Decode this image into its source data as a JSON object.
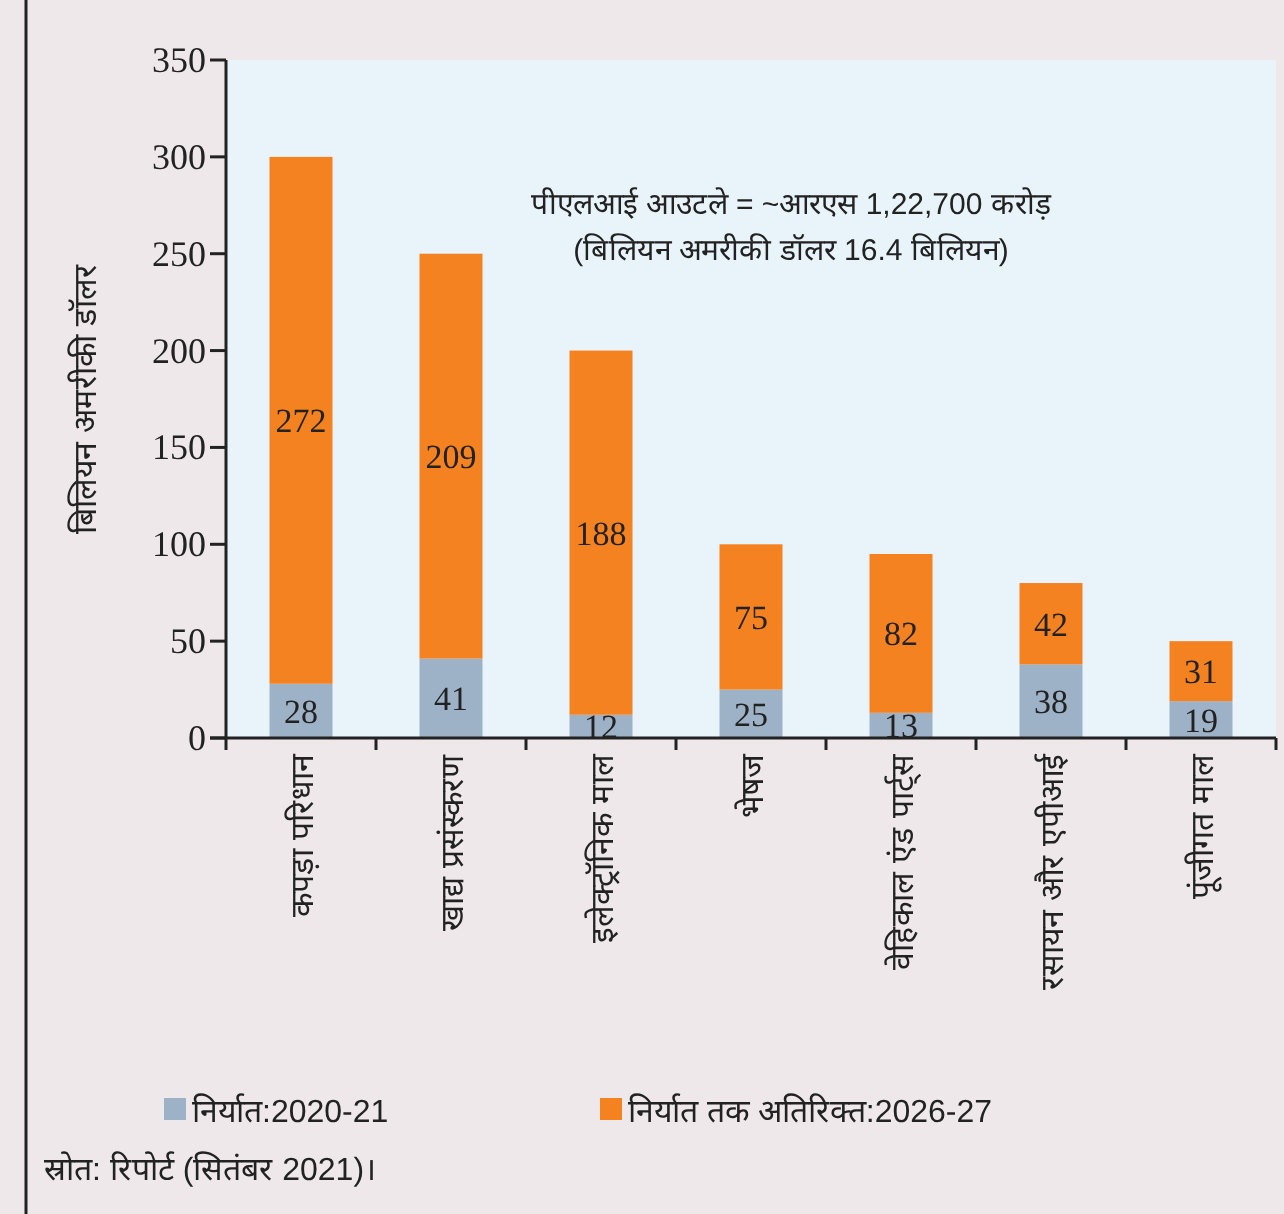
{
  "chart_data": {
    "type": "bar",
    "stacked": true,
    "ylabel": "बिलियन अमरीकी डॉलर",
    "categories": [
      "कपड़ा परिधान",
      "खाद्य प्रसंस्करण",
      "इलेक्ट्रॉनिक माल",
      "भेषज",
      "वेहिकाल एंड पार्ट्स",
      "रसायन और एपीआई",
      "पूंजीगत माल"
    ],
    "series": [
      {
        "name": "निर्यात:2020-21",
        "color": "#9eb2c7",
        "values": [
          28,
          41,
          12,
          25,
          13,
          38,
          19
        ]
      },
      {
        "name": "निर्यात तक अतिरिक्त:2026-27",
        "color": "#f58220",
        "values": [
          272,
          209,
          188,
          75,
          82,
          42,
          31
        ]
      }
    ],
    "ylim": [
      0,
      350
    ],
    "yticks": [
      0,
      50,
      100,
      150,
      200,
      250,
      300,
      350
    ],
    "data_labels": true,
    "legend": "bottom",
    "annotations": [
      "पीएलआई आउटले = ~आरएस 1,22,700 करोड़",
      "(बिलियन अमरीकी डॉलर 16.4 बिलियन)",
      "स्रोत: रिपोर्ट (सितंबर 2021)।"
    ]
  }
}
